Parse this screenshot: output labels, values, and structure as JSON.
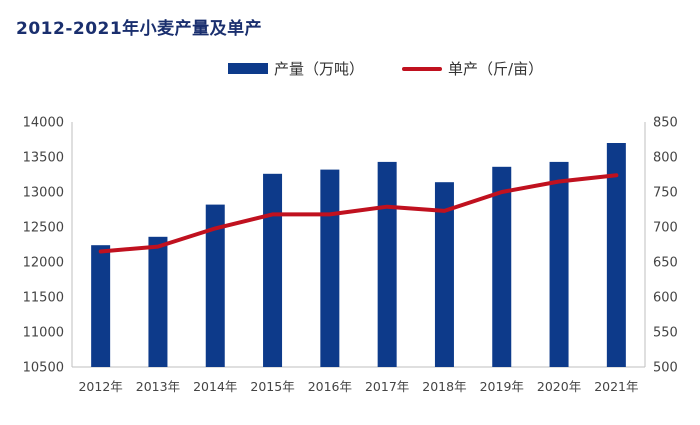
{
  "chart_data": {
    "type": "bar",
    "title": "2012-2021年小麦产量及单产",
    "categories": [
      "2012年",
      "2013年",
      "2014年",
      "2015年",
      "2016年",
      "2017年",
      "2018年",
      "2019年",
      "2020年",
      "2021年"
    ],
    "series": [
      {
        "name": "产量（万吨）",
        "type": "bar",
        "axis": "left",
        "color": "#0d3a8a",
        "values": [
          12240,
          12360,
          12820,
          13260,
          13320,
          13430,
          13140,
          13360,
          13430,
          13700
        ]
      },
      {
        "name": "单产（斤/亩）",
        "type": "line",
        "axis": "right",
        "color": "#c0111f",
        "values": [
          665,
          672,
          698,
          718,
          718,
          729,
          723,
          750,
          765,
          774
        ]
      }
    ],
    "y_left": {
      "min": 10500,
      "max": 14000,
      "ticks": [
        10500,
        11000,
        11500,
        12000,
        12500,
        13000,
        13500,
        14000
      ]
    },
    "y_right": {
      "min": 500,
      "max": 850,
      "ticks": [
        500,
        550,
        600,
        650,
        700,
        750,
        800,
        850
      ]
    },
    "legend_position": "top",
    "grid": false
  }
}
